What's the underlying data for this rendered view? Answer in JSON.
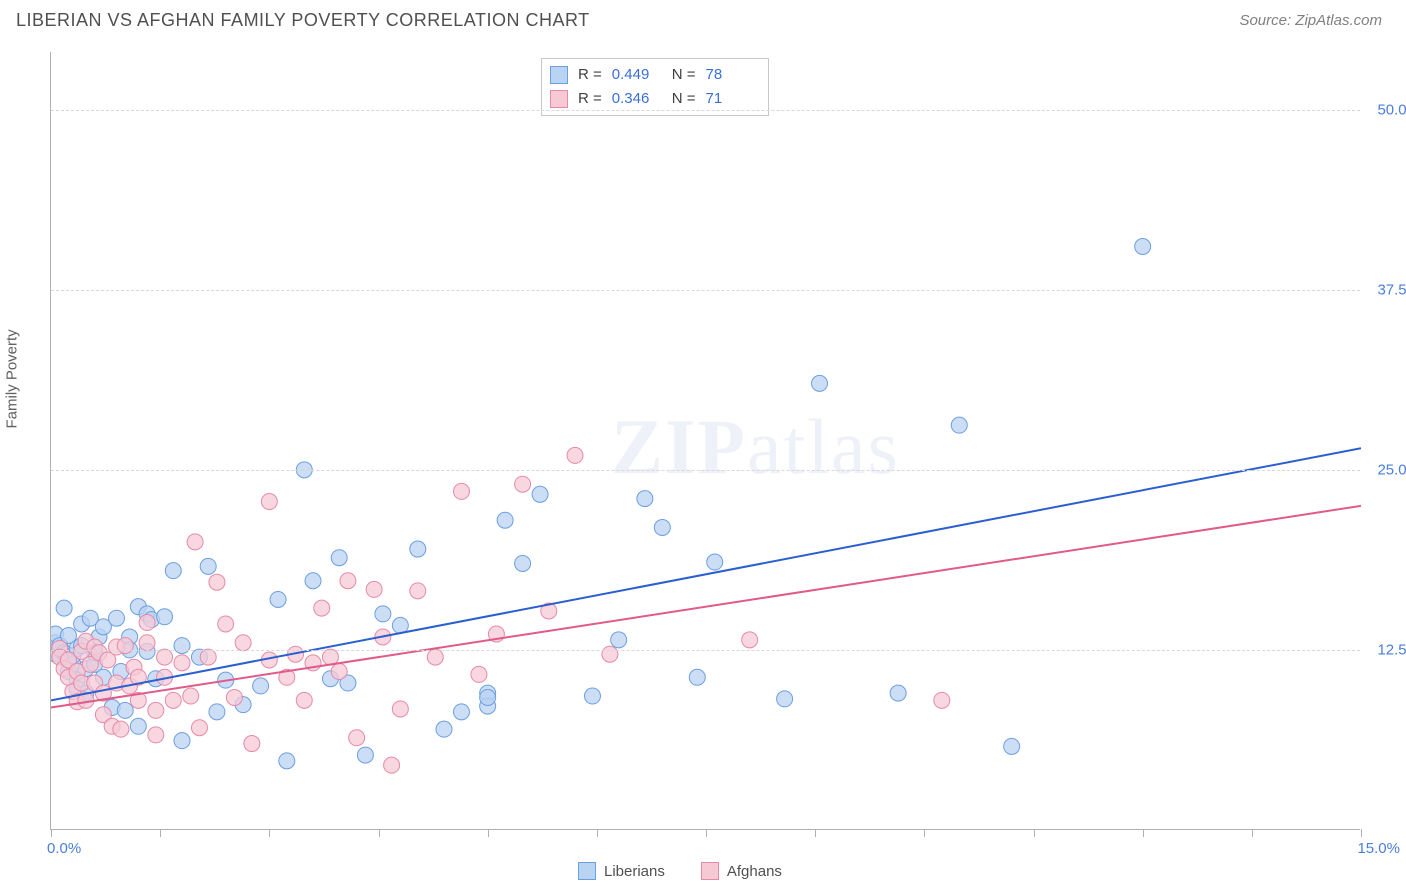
{
  "header": {
    "title": "LIBERIAN VS AFGHAN FAMILY POVERTY CORRELATION CHART",
    "source": "Source: ZipAtlas.com"
  },
  "chart": {
    "type": "scatter",
    "ylabel": "Family Poverty",
    "watermark_a": "ZIP",
    "watermark_b": "atlas",
    "background_color": "#ffffff",
    "grid_color": "#d8d8d8",
    "axis_color": "#b0b0b0",
    "label_color": "#4a7edc",
    "xlim": [
      0,
      15
    ],
    "ylim": [
      0,
      54
    ],
    "x_corner_min": "0.0%",
    "x_corner_max": "15.0%",
    "x_ticks": [
      0,
      1.25,
      2.5,
      3.75,
      5.0,
      6.25,
      7.5,
      8.75,
      10.0,
      11.25,
      12.5,
      13.75,
      15.0
    ],
    "y_ticks": [
      {
        "v": 12.5,
        "label": "12.5%"
      },
      {
        "v": 25.0,
        "label": "25.0%"
      },
      {
        "v": 37.5,
        "label": "37.5%"
      },
      {
        "v": 50.0,
        "label": "50.0%"
      }
    ],
    "series": [
      {
        "name": "Liberians",
        "marker_fill": "#b9d3f2",
        "marker_stroke": "#6c9fe0",
        "line_color": "#2a5fd0",
        "marker_radius": 8,
        "line_width": 2,
        "R": "0.449",
        "N": "78",
        "trend": {
          "x1": 0,
          "y1": 9.0,
          "x2": 15,
          "y2": 26.5
        },
        "points": [
          [
            0.05,
            12.2
          ],
          [
            0.05,
            13.0
          ],
          [
            0.05,
            13.6
          ],
          [
            0.1,
            12.0
          ],
          [
            0.1,
            12.8
          ],
          [
            0.15,
            15.4
          ],
          [
            0.15,
            12.3
          ],
          [
            0.18,
            12.2
          ],
          [
            0.2,
            13.5
          ],
          [
            0.2,
            11.0
          ],
          [
            0.25,
            11.5
          ],
          [
            0.25,
            12.1
          ],
          [
            0.3,
            10.4
          ],
          [
            0.3,
            12.6
          ],
          [
            0.3,
            9.8
          ],
          [
            0.35,
            14.3
          ],
          [
            0.35,
            12.8
          ],
          [
            0.4,
            9.5
          ],
          [
            0.4,
            11.2
          ],
          [
            0.45,
            14.7
          ],
          [
            0.5,
            11.5
          ],
          [
            0.5,
            12.3
          ],
          [
            0.55,
            13.4
          ],
          [
            0.6,
            10.6
          ],
          [
            0.6,
            14.1
          ],
          [
            0.7,
            8.5
          ],
          [
            0.75,
            14.7
          ],
          [
            0.8,
            11.0
          ],
          [
            0.85,
            8.3
          ],
          [
            0.9,
            13.4
          ],
          [
            0.9,
            12.5
          ],
          [
            1.0,
            15.5
          ],
          [
            1.0,
            7.2
          ],
          [
            1.1,
            12.4
          ],
          [
            1.1,
            15.0
          ],
          [
            1.15,
            14.6
          ],
          [
            1.2,
            10.5
          ],
          [
            1.3,
            14.8
          ],
          [
            1.4,
            18.0
          ],
          [
            1.5,
            12.8
          ],
          [
            1.5,
            6.2
          ],
          [
            1.7,
            12.0
          ],
          [
            1.8,
            18.3
          ],
          [
            1.9,
            8.2
          ],
          [
            2.0,
            10.4
          ],
          [
            2.2,
            8.7
          ],
          [
            2.4,
            10.0
          ],
          [
            2.6,
            16.0
          ],
          [
            2.7,
            4.8
          ],
          [
            2.9,
            25.0
          ],
          [
            3.0,
            17.3
          ],
          [
            3.2,
            10.5
          ],
          [
            3.3,
            18.9
          ],
          [
            3.4,
            10.2
          ],
          [
            3.6,
            5.2
          ],
          [
            3.8,
            15.0
          ],
          [
            4.0,
            14.2
          ],
          [
            4.2,
            19.5
          ],
          [
            4.5,
            7.0
          ],
          [
            4.7,
            8.2
          ],
          [
            5.0,
            9.5
          ],
          [
            5.0,
            8.6
          ],
          [
            5.0,
            9.2
          ],
          [
            5.2,
            21.5
          ],
          [
            5.4,
            18.5
          ],
          [
            5.6,
            23.3
          ],
          [
            6.2,
            9.3
          ],
          [
            6.5,
            13.2
          ],
          [
            6.8,
            23.0
          ],
          [
            7.0,
            21.0
          ],
          [
            7.4,
            10.6
          ],
          [
            7.6,
            18.6
          ],
          [
            8.4,
            9.1
          ],
          [
            8.8,
            31.0
          ],
          [
            9.7,
            9.5
          ],
          [
            10.4,
            28.1
          ],
          [
            11.0,
            5.8
          ],
          [
            12.5,
            40.5
          ]
        ]
      },
      {
        "name": "Afghans",
        "marker_fill": "#f6c9d5",
        "marker_stroke": "#e68aa8",
        "line_color": "#e05a8a",
        "marker_radius": 8,
        "line_width": 2,
        "R": "0.346",
        "N": "71",
        "trend": {
          "x1": 0,
          "y1": 8.5,
          "x2": 15,
          "y2": 22.5
        },
        "points": [
          [
            0.1,
            12.6
          ],
          [
            0.1,
            12.0
          ],
          [
            0.15,
            11.2
          ],
          [
            0.2,
            10.6
          ],
          [
            0.2,
            11.8
          ],
          [
            0.25,
            9.6
          ],
          [
            0.3,
            11.0
          ],
          [
            0.3,
            8.9
          ],
          [
            0.35,
            12.4
          ],
          [
            0.35,
            10.2
          ],
          [
            0.4,
            9.0
          ],
          [
            0.4,
            13.1
          ],
          [
            0.45,
            11.5
          ],
          [
            0.5,
            10.2
          ],
          [
            0.5,
            12.7
          ],
          [
            0.55,
            12.3
          ],
          [
            0.6,
            8.0
          ],
          [
            0.6,
            9.5
          ],
          [
            0.65,
            11.8
          ],
          [
            0.7,
            7.2
          ],
          [
            0.75,
            12.7
          ],
          [
            0.75,
            10.2
          ],
          [
            0.8,
            7.0
          ],
          [
            0.85,
            12.8
          ],
          [
            0.9,
            10.0
          ],
          [
            0.95,
            11.3
          ],
          [
            1.0,
            9.0
          ],
          [
            1.0,
            10.6
          ],
          [
            1.1,
            13.0
          ],
          [
            1.1,
            14.4
          ],
          [
            1.2,
            8.3
          ],
          [
            1.2,
            6.6
          ],
          [
            1.3,
            12.0
          ],
          [
            1.3,
            10.6
          ],
          [
            1.4,
            9.0
          ],
          [
            1.5,
            11.6
          ],
          [
            1.6,
            9.3
          ],
          [
            1.65,
            20.0
          ],
          [
            1.7,
            7.1
          ],
          [
            1.8,
            12.0
          ],
          [
            1.9,
            17.2
          ],
          [
            2.0,
            14.3
          ],
          [
            2.1,
            9.2
          ],
          [
            2.2,
            13.0
          ],
          [
            2.3,
            6.0
          ],
          [
            2.5,
            11.8
          ],
          [
            2.5,
            22.8
          ],
          [
            2.7,
            10.6
          ],
          [
            2.8,
            12.2
          ],
          [
            2.9,
            9.0
          ],
          [
            3.0,
            11.6
          ],
          [
            3.1,
            15.4
          ],
          [
            3.2,
            12.0
          ],
          [
            3.3,
            11.0
          ],
          [
            3.4,
            17.3
          ],
          [
            3.5,
            6.4
          ],
          [
            3.7,
            16.7
          ],
          [
            3.8,
            13.4
          ],
          [
            3.9,
            4.5
          ],
          [
            4.0,
            8.4
          ],
          [
            4.2,
            16.6
          ],
          [
            4.4,
            12.0
          ],
          [
            4.7,
            23.5
          ],
          [
            4.9,
            10.8
          ],
          [
            5.1,
            13.6
          ],
          [
            5.4,
            24.0
          ],
          [
            5.7,
            15.2
          ],
          [
            6.0,
            26.0
          ],
          [
            6.4,
            12.2
          ],
          [
            8.0,
            13.2
          ],
          [
            10.2,
            9.0
          ]
        ]
      }
    ]
  },
  "legend_bottom": [
    {
      "label": "Liberians",
      "fill": "#b9d3f2",
      "stroke": "#6c9fe0"
    },
    {
      "label": "Afghans",
      "fill": "#f6c9d5",
      "stroke": "#e68aa8"
    }
  ]
}
